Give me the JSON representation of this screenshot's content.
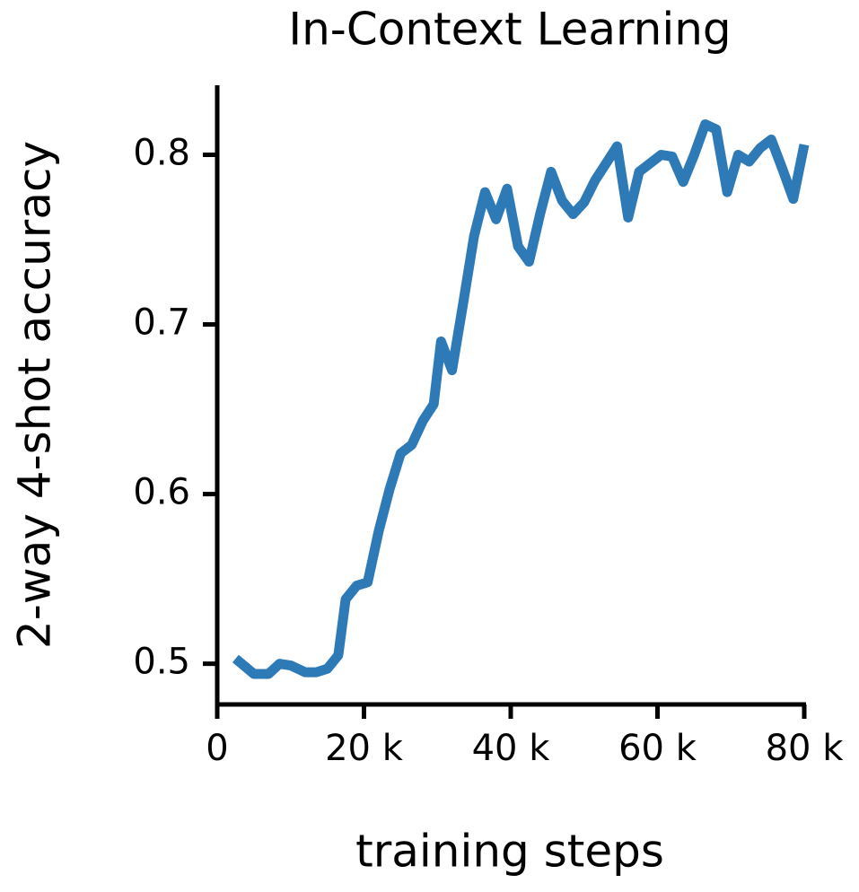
{
  "chart_data": {
    "type": "line",
    "title": "In-Context Learning",
    "x_label": "training steps",
    "y_label": "2-way 4-shot accuracy",
    "x": [
      2500,
      5000,
      7000,
      8500,
      10000,
      12000,
      13500,
      15000,
      16500,
      17500,
      19000,
      20500,
      22000,
      23500,
      25000,
      26500,
      28000,
      29500,
      30500,
      32000,
      33500,
      35000,
      36500,
      38000,
      39500,
      41000,
      42500,
      44000,
      45500,
      47000,
      48500,
      50000,
      51500,
      53000,
      54500,
      56000,
      57500,
      59000,
      60500,
      62000,
      63500,
      65000,
      66500,
      68000,
      69500,
      71000,
      72500,
      74000,
      75500,
      77000,
      78500,
      80000
    ],
    "series": [
      {
        "name": "accuracy",
        "color": "#2e7ab6",
        "values": [
          0.503,
          0.494,
          0.494,
          0.5,
          0.499,
          0.495,
          0.495,
          0.497,
          0.505,
          0.538,
          0.546,
          0.548,
          0.578,
          0.603,
          0.624,
          0.629,
          0.643,
          0.653,
          0.69,
          0.673,
          0.712,
          0.752,
          0.778,
          0.762,
          0.78,
          0.746,
          0.737,
          0.765,
          0.79,
          0.773,
          0.765,
          0.772,
          0.785,
          0.795,
          0.805,
          0.763,
          0.79,
          0.795,
          0.8,
          0.799,
          0.784,
          0.8,
          0.818,
          0.815,
          0.778,
          0.8,
          0.796,
          0.804,
          0.809,
          0.792,
          0.774,
          0.806
        ]
      }
    ],
    "xlim": [
      0,
      80000
    ],
    "ylim": [
      0.476,
      0.841
    ],
    "xticks": [
      0,
      {
        "value": 20000,
        "label": "20 k"
      },
      {
        "value": 40000,
        "label": "40 k"
      },
      {
        "value": 60000,
        "label": "60 k"
      },
      {
        "value": 80000,
        "label": "80 k"
      }
    ],
    "yticks": [
      0.5,
      0.6,
      0.7,
      0.8
    ]
  }
}
